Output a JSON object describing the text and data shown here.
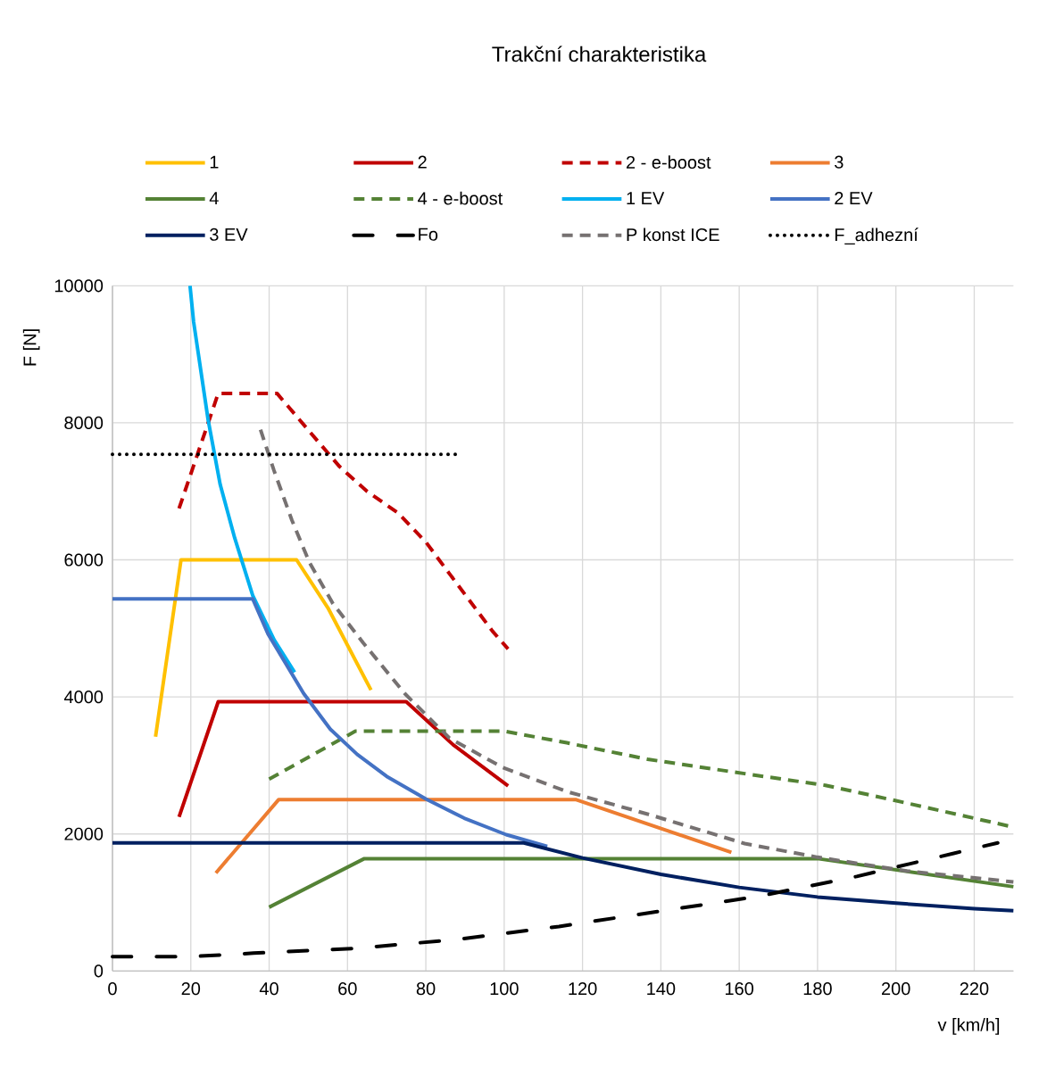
{
  "chart_data": {
    "type": "line",
    "title": "Trakční charakteristika",
    "xlabel": "v [km/h]",
    "ylabel": "F [N]",
    "xlim": [
      0,
      230
    ],
    "ylim": [
      0,
      10000
    ],
    "xticks": [
      0,
      20,
      40,
      60,
      80,
      100,
      120,
      140,
      160,
      180,
      200,
      220
    ],
    "yticks": [
      0,
      2000,
      4000,
      6000,
      8000,
      10000
    ],
    "grid": true,
    "legend": "top",
    "series": [
      {
        "name": "1",
        "color": "#ffc000",
        "line_style": "solid",
        "x": [
          11,
          17.5,
          47,
          55,
          66
        ],
        "values": [
          3420,
          6000,
          6000,
          5300,
          4100
        ]
      },
      {
        "name": "2",
        "color": "#c00000",
        "line_style": "solid",
        "x": [
          17,
          27,
          75,
          87,
          101
        ],
        "values": [
          2250,
          3930,
          3930,
          3300,
          2700
        ]
      },
      {
        "name": "2 - e-boost",
        "color": "#c00000",
        "line_style": "dashed",
        "x": [
          17,
          27,
          42,
          52,
          58,
          65,
          73,
          80,
          86,
          97,
          101
        ],
        "values": [
          6750,
          8430,
          8430,
          7760,
          7360,
          7000,
          6680,
          6260,
          5800,
          4960,
          4700
        ]
      },
      {
        "name": "3",
        "color": "#ed7d31",
        "line_style": "solid",
        "x": [
          26.4,
          42.4,
          118.4,
          158
        ],
        "values": [
          1430,
          2500,
          2500,
          1730
        ]
      },
      {
        "name": "4",
        "color": "#548235",
        "line_style": "solid",
        "x": [
          40,
          64.3,
          180,
          230
        ],
        "values": [
          930,
          1640,
          1640,
          1230
        ]
      },
      {
        "name": "4 - e-boost",
        "color": "#548235",
        "line_style": "dashed",
        "x": [
          40,
          62,
          100,
          116,
          136.6,
          161.4,
          182,
          202.8,
          230
        ],
        "values": [
          2800,
          3500,
          3500,
          3330,
          3090,
          2880,
          2710,
          2450,
          2100
        ]
      },
      {
        "name": "1 EV",
        "color": "#00b0f0",
        "line_style": "solid",
        "x": [
          19.8,
          20.7,
          24.4,
          27.5,
          31.2,
          35.8,
          41.3,
          46.5
        ],
        "values": [
          10000,
          9480,
          8050,
          7100,
          6320,
          5480,
          4830,
          4360
        ]
      },
      {
        "name": "2 EV",
        "color": "#4472c4",
        "line_style": "solid",
        "x": [
          0,
          35.8,
          39.7,
          44.2,
          48.8,
          55.6,
          62.5,
          70,
          80,
          89.8,
          100.5,
          111
        ],
        "values": [
          5430,
          5430,
          4920,
          4490,
          4050,
          3530,
          3160,
          2840,
          2510,
          2230,
          1990,
          1820
        ]
      },
      {
        "name": "3 EV",
        "color": "#002060",
        "line_style": "solid",
        "x": [
          0,
          105,
          120,
          140,
          160,
          180,
          200,
          220,
          230
        ],
        "values": [
          1870,
          1870,
          1650,
          1410,
          1220,
          1080,
          990,
          910,
          880
        ]
      },
      {
        "name": "Fo",
        "color": "#000000",
        "line_style": "dashdotdot",
        "x": [
          0,
          20,
          36,
          62,
          88,
          114,
          165,
          190,
          215,
          226
        ],
        "values": [
          210,
          210,
          260,
          330,
          460,
          650,
          1090,
          1380,
          1720,
          1870
        ]
      },
      {
        "name": "P konst ICE",
        "color": "#767171",
        "line_style": "dashed",
        "x": [
          37.8,
          41.2,
          45.8,
          50.3,
          56.3,
          64,
          74.6,
          86,
          99.6,
          115.9,
          136.6,
          161.4,
          180,
          202.8,
          230
        ],
        "values": [
          7900,
          7310,
          6580,
          5960,
          5360,
          4790,
          4050,
          3400,
          2970,
          2620,
          2290,
          1860,
          1660,
          1460,
          1300
        ]
      },
      {
        "name": "F_adhezní",
        "color": "#000000",
        "line_style": "dotted",
        "x": [
          0,
          88
        ],
        "values": [
          7540,
          7540
        ]
      }
    ]
  }
}
